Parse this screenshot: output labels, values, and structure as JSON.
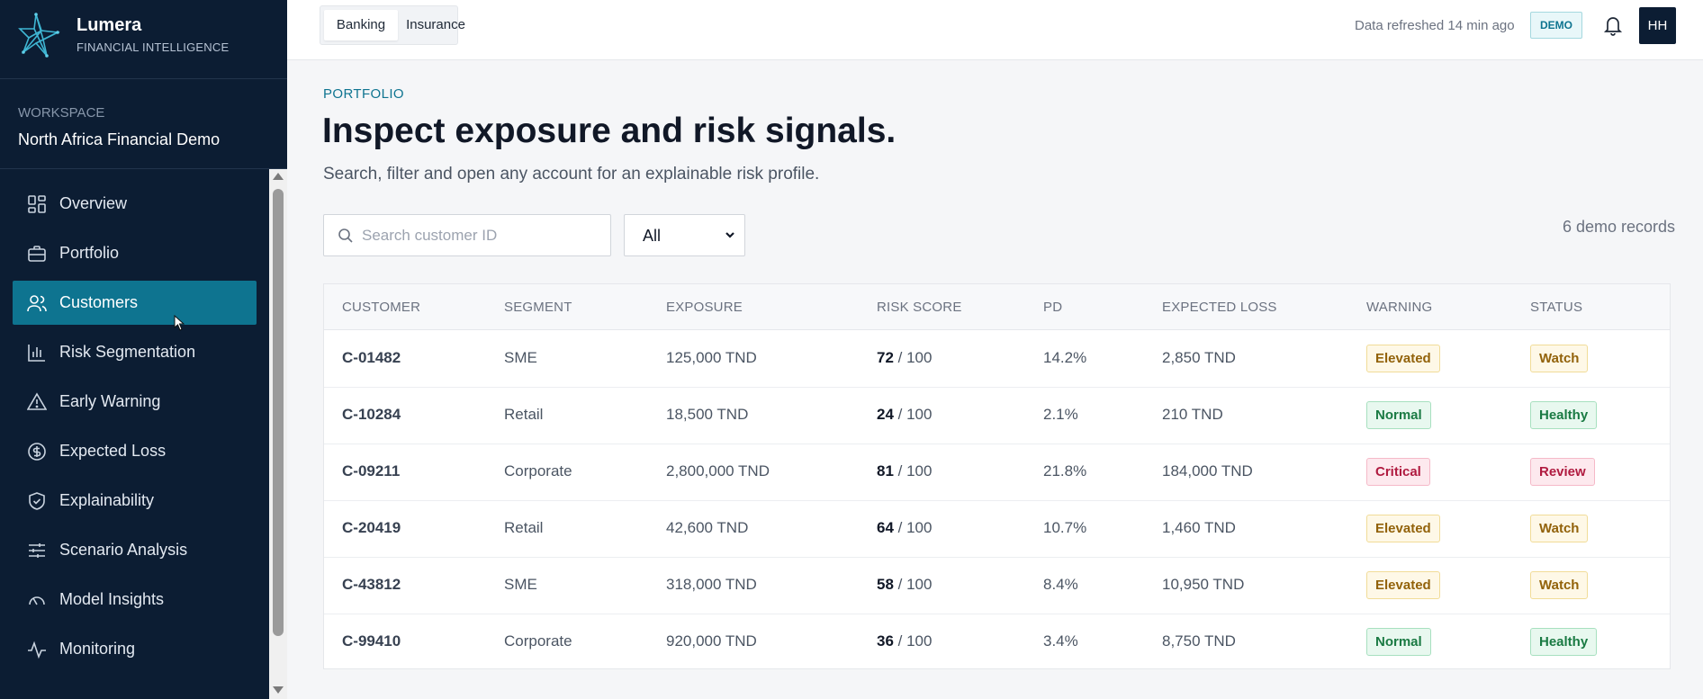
{
  "brand": {
    "name": "Lumera",
    "subtitle": "FINANCIAL INTELLIGENCE",
    "logo_icon": "star-logo-icon"
  },
  "workspace": {
    "label": "WORKSPACE",
    "name": "North Africa Financial Demo"
  },
  "sidebar": {
    "items": [
      {
        "label": "Overview",
        "icon": "grid-icon"
      },
      {
        "label": "Portfolio",
        "icon": "briefcase-icon"
      },
      {
        "label": "Customers",
        "icon": "users-icon",
        "active": true
      },
      {
        "label": "Risk Segmentation",
        "icon": "bar-chart-icon"
      },
      {
        "label": "Early Warning",
        "icon": "warning-icon"
      },
      {
        "label": "Expected Loss",
        "icon": "dollar-icon"
      },
      {
        "label": "Explainability",
        "icon": "shield-icon"
      },
      {
        "label": "Scenario Analysis",
        "icon": "sliders-icon"
      },
      {
        "label": "Model Insights",
        "icon": "gauge-icon"
      },
      {
        "label": "Monitoring",
        "icon": "activity-icon"
      }
    ]
  },
  "topbar": {
    "tabs": [
      {
        "label": "Banking",
        "active": true
      },
      {
        "label": "Insurance"
      }
    ],
    "refresh_text": "Data refreshed 14 min ago",
    "demo_badge": "DEMO",
    "avatar_initials": "HH"
  },
  "main": {
    "eyebrow": "PORTFOLIO",
    "title": "Inspect exposure and risk signals.",
    "subtitle": "Search, filter and open any account for an explainable risk profile.",
    "search_placeholder": "Search customer ID",
    "filter_value": "All",
    "record_count": "6 demo records"
  },
  "table": {
    "columns": [
      "CUSTOMER",
      "SEGMENT",
      "EXPOSURE",
      "RISK SCORE",
      "PD",
      "EXPECTED LOSS",
      "WARNING",
      "STATUS"
    ],
    "rows": [
      {
        "customer": "C-01482",
        "segment": "SME",
        "exposure": "125,000 TND",
        "risk_score": "72",
        "risk_max": "/ 100",
        "pd": "14.2%",
        "expected_loss": "2,850 TND",
        "warning": "Elevated",
        "status": "Watch"
      },
      {
        "customer": "C-10284",
        "segment": "Retail",
        "exposure": "18,500 TND",
        "risk_score": "24",
        "risk_max": "/ 100",
        "pd": "2.1%",
        "expected_loss": "210 TND",
        "warning": "Normal",
        "status": "Healthy"
      },
      {
        "customer": "C-09211",
        "segment": "Corporate",
        "exposure": "2,800,000 TND",
        "risk_score": "81",
        "risk_max": "/ 100",
        "pd": "21.8%",
        "expected_loss": "184,000 TND",
        "warning": "Critical",
        "status": "Review"
      },
      {
        "customer": "C-20419",
        "segment": "Retail",
        "exposure": "42,600 TND",
        "risk_score": "64",
        "risk_max": "/ 100",
        "pd": "10.7%",
        "expected_loss": "1,460 TND",
        "warning": "Elevated",
        "status": "Watch"
      },
      {
        "customer": "C-43812",
        "segment": "SME",
        "exposure": "318,000 TND",
        "risk_score": "58",
        "risk_max": "/ 100",
        "pd": "8.4%",
        "expected_loss": "10,950 TND",
        "warning": "Elevated",
        "status": "Watch"
      },
      {
        "customer": "C-99410",
        "segment": "Corporate",
        "exposure": "920,000 TND",
        "risk_score": "36",
        "risk_max": "/ 100",
        "pd": "3.4%",
        "expected_loss": "8,750 TND",
        "warning": "Normal",
        "status": "Healthy"
      }
    ]
  },
  "colors": {
    "sidebar_bg": "#0c1d33",
    "accent": "#0e7490",
    "elevated": "#92620a",
    "normal": "#1a7a43",
    "critical": "#b01b40"
  }
}
